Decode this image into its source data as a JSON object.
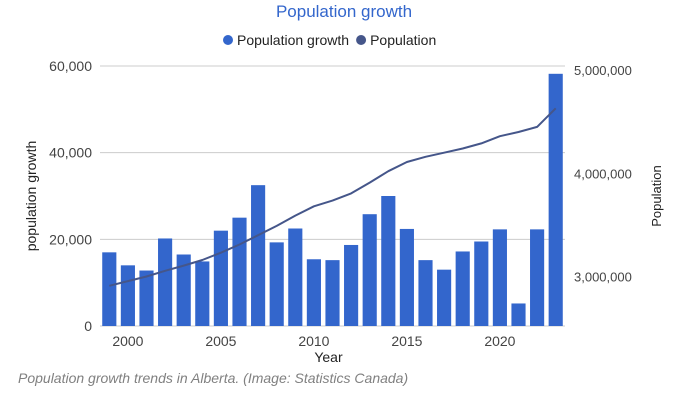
{
  "chart_data": {
    "type": "bar",
    "title": "Population growth",
    "xlabel": "Year",
    "ylabel": "population growth",
    "y2label": "Population",
    "legend_position": "top",
    "legend": [
      "Population growth",
      "Population"
    ],
    "x": [
      1999,
      2000,
      2001,
      2002,
      2003,
      2004,
      2005,
      2006,
      2007,
      2008,
      2009,
      2010,
      2011,
      2012,
      2013,
      2014,
      2015,
      2016,
      2017,
      2018,
      2019,
      2020,
      2021,
      2022,
      2023
    ],
    "xticks": [
      2000,
      2005,
      2010,
      2015,
      2020
    ],
    "xtick_labels": [
      "2000",
      "2005",
      "2010",
      "2015",
      "2020"
    ],
    "ylim": [
      0,
      60000
    ],
    "yticks": [
      0,
      20000,
      40000,
      60000
    ],
    "ytick_labels": [
      "0",
      "20,000",
      "40,000",
      "60,000"
    ],
    "y2lim": [
      2530000,
      5050000
    ],
    "y2ticks": [
      3000000,
      4000000,
      5000000
    ],
    "y2tick_labels": [
      "3,000,000",
      "4,000,000",
      "5,000,000"
    ],
    "series": [
      {
        "name": "Population growth",
        "type": "bar",
        "axis": "left",
        "color": "#3366cc",
        "values": [
          17000,
          14000,
          12800,
          20200,
          16500,
          14900,
          22000,
          25000,
          32500,
          19300,
          22500,
          15400,
          15200,
          18700,
          25800,
          30000,
          22400,
          15200,
          13000,
          17200,
          19500,
          22300,
          5200,
          22300,
          58200
        ]
      },
      {
        "name": "Population",
        "type": "line",
        "axis": "right",
        "color": "#45568a",
        "values": [
          2920000,
          2965000,
          3010000,
          3065000,
          3115000,
          3170000,
          3240000,
          3320000,
          3410000,
          3500000,
          3600000,
          3690000,
          3745000,
          3815000,
          3920000,
          4030000,
          4120000,
          4170000,
          4210000,
          4250000,
          4300000,
          4370000,
          4410000,
          4460000,
          4640000
        ]
      }
    ]
  },
  "caption": "Population growth trends in Alberta. (Image: Statistics Canada)",
  "colors": {
    "title": "#3366cc",
    "text": "#222222",
    "axis_text": "#444444",
    "grid": "#cccccc",
    "caption": "#808080"
  }
}
